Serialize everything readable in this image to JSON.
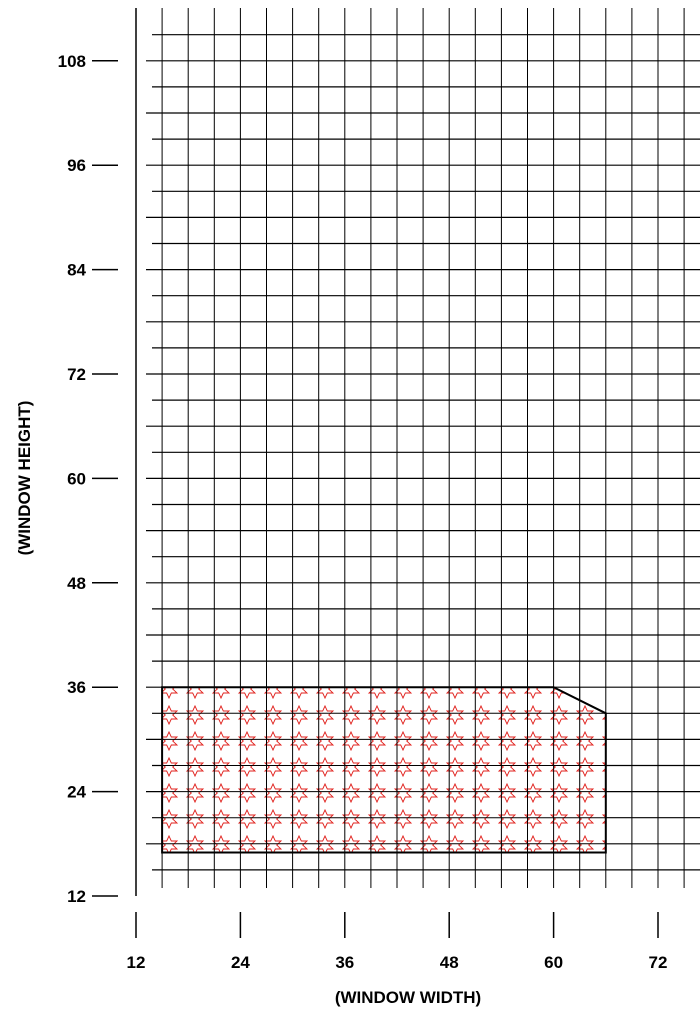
{
  "chart_data": {
    "type": "area",
    "title": "",
    "xlabel": "(WINDOW WIDTH)",
    "ylabel": "(WINDOW HEIGHT)",
    "xlim": [
      12,
      75
    ],
    "ylim": [
      12,
      112
    ],
    "x_ticks": [
      12,
      24,
      36,
      48,
      60,
      72
    ],
    "y_ticks": [
      12,
      24,
      36,
      48,
      60,
      72,
      84,
      96,
      108
    ],
    "x_tick_labels": [
      "12",
      "24",
      "36",
      "48",
      "60",
      "72"
    ],
    "y_tick_labels": [
      "12",
      "24",
      "36",
      "48",
      "60",
      "72",
      "84",
      "96",
      "108"
    ],
    "grid": true,
    "grid_spacing": 3,
    "region": {
      "fill_pattern": "red-star",
      "fill_color": "#e0201c",
      "points": [
        [
          15,
          17
        ],
        [
          15,
          36
        ],
        [
          60,
          36
        ],
        [
          66,
          33
        ],
        [
          66,
          17
        ]
      ]
    }
  }
}
